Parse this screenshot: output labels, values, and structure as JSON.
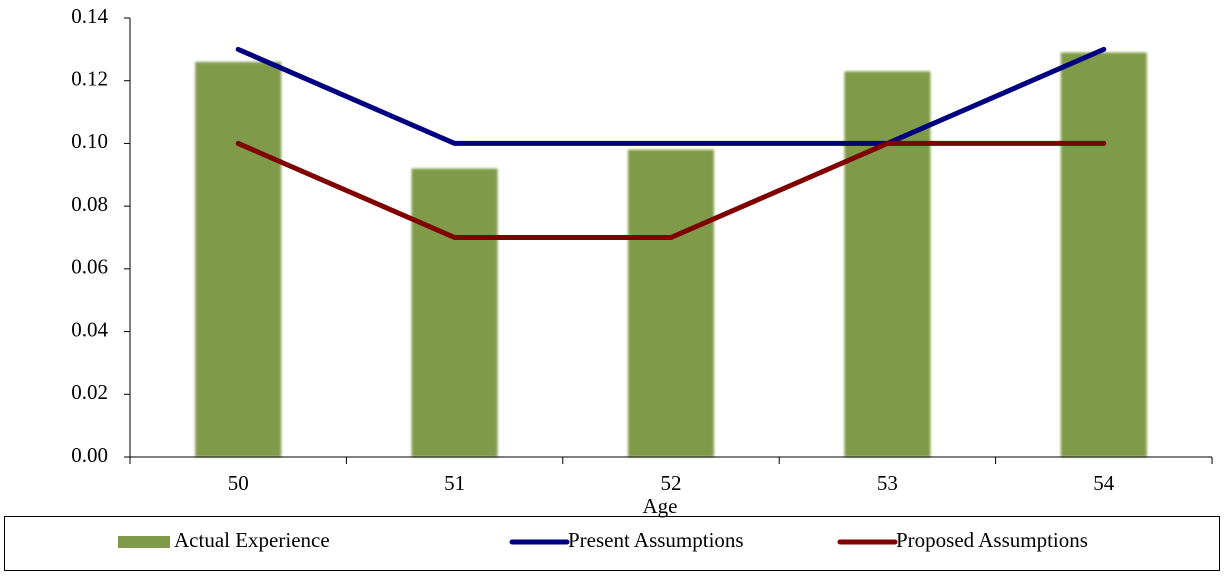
{
  "chart_data": {
    "type": "bar",
    "x_label": "Age",
    "categories": [
      "50",
      "51",
      "52",
      "53",
      "54"
    ],
    "series": [
      {
        "name": "Actual Experience",
        "type": "bar",
        "color": "#7f9b4a",
        "values": [
          0.126,
          0.092,
          0.098,
          0.123,
          0.129
        ]
      },
      {
        "name": "Present Assumptions",
        "type": "line",
        "color": "#000080",
        "values": [
          0.13,
          0.1,
          0.1,
          0.1,
          0.13
        ]
      },
      {
        "name": "Proposed Assumptions",
        "type": "line",
        "color": "#800000",
        "values": [
          0.1,
          0.07,
          0.07,
          0.1,
          0.1
        ]
      }
    ],
    "ylim": [
      0,
      0.14
    ],
    "yticks": [
      {
        "value": 0,
        "label": "0.00"
      },
      {
        "value": 0.02,
        "label": "0.02"
      },
      {
        "value": 0.04,
        "label": "0.04"
      },
      {
        "value": 0.06,
        "label": "0.06"
      },
      {
        "value": 0.08,
        "label": "0.08"
      },
      {
        "value": 0.1,
        "label": "0.10"
      },
      {
        "value": 0.12,
        "label": "0.12"
      },
      {
        "value": 0.14,
        "label": "0.14"
      }
    ],
    "legend": "bottom"
  }
}
